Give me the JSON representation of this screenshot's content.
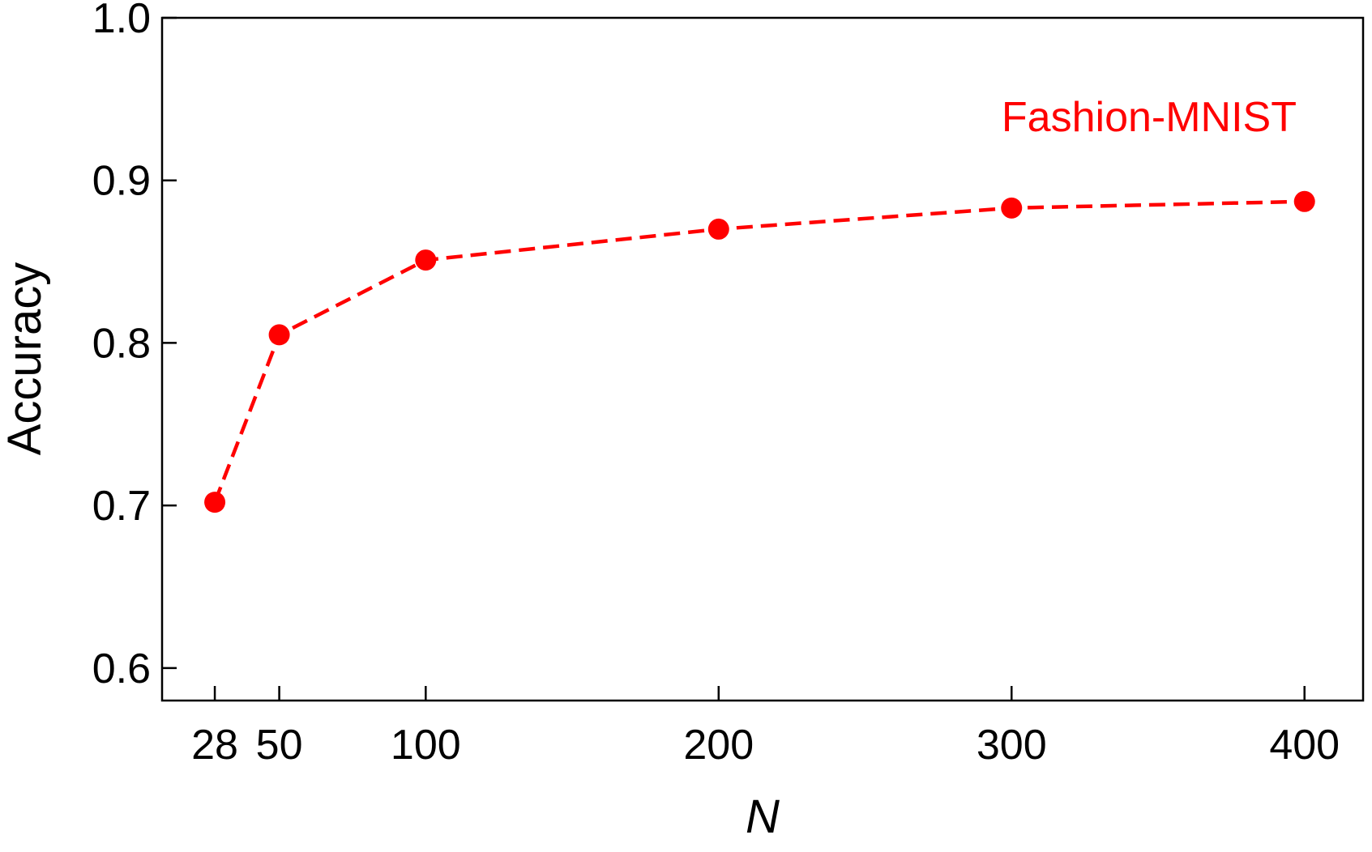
{
  "chart_data": {
    "type": "line",
    "title": "",
    "xlabel": "N",
    "ylabel": "Accuracy",
    "x": [
      28,
      50,
      100,
      200,
      300,
      400
    ],
    "series": [
      {
        "values": [
          0.702,
          0.805,
          0.851,
          0.87,
          0.883,
          0.887
        ],
        "color": "#ff0000",
        "line_style": "dashed",
        "marker": "circle"
      }
    ],
    "x_ticks": [
      28,
      50,
      100,
      200,
      300,
      400
    ],
    "x_tick_labels": [
      "28",
      "50",
      "100",
      "200",
      "300",
      "400"
    ],
    "y_ticks": [
      0.6,
      0.7,
      0.8,
      0.9,
      1.0
    ],
    "y_tick_labels": [
      "0.6",
      "0.7",
      "0.8",
      "0.9",
      "1.0"
    ],
    "xlim": [
      10,
      420
    ],
    "ylim": [
      0.58,
      1.0
    ],
    "grid": false,
    "annotations": [
      {
        "text": "Fashion-MNIST",
        "color": "#ff0000"
      }
    ]
  }
}
